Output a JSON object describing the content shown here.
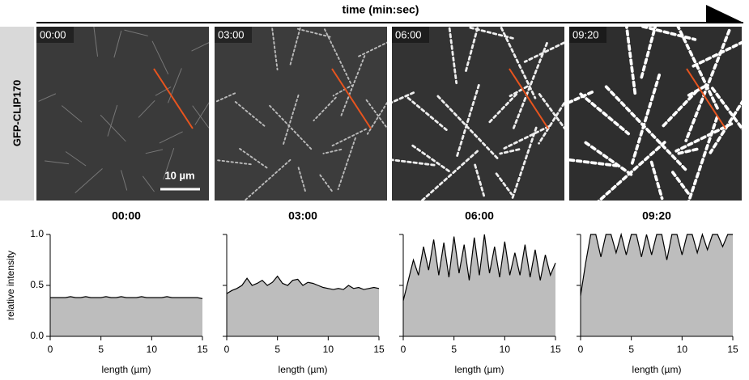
{
  "header": {
    "title": "time (min:sec)"
  },
  "images": {
    "label": "GFP-CLIP170",
    "scale_bar": "10 µm",
    "panels": [
      {
        "time": "00:00"
      },
      {
        "time": "03:00"
      },
      {
        "time": "06:00"
      },
      {
        "time": "09:20"
      }
    ]
  },
  "chart_data": [
    {
      "type": "area",
      "title": "00:00",
      "xlabel": "length (µm)",
      "ylabel": "relative intensity",
      "color": "#bdbdbd",
      "x": [
        0,
        0.5,
        1,
        1.5,
        2,
        2.5,
        3,
        3.5,
        4,
        4.5,
        5,
        5.5,
        6,
        6.5,
        7,
        7.5,
        8,
        8.5,
        9,
        9.5,
        10,
        10.5,
        11,
        11.5,
        12,
        12.5,
        13,
        13.5,
        14,
        14.5,
        15
      ],
      "values": [
        0.38,
        0.38,
        0.38,
        0.38,
        0.39,
        0.38,
        0.38,
        0.39,
        0.38,
        0.38,
        0.38,
        0.39,
        0.38,
        0.38,
        0.39,
        0.38,
        0.38,
        0.38,
        0.39,
        0.38,
        0.38,
        0.38,
        0.38,
        0.39,
        0.38,
        0.38,
        0.38,
        0.38,
        0.38,
        0.38,
        0.37
      ],
      "xlim": [
        0,
        15
      ],
      "xticks": [
        0,
        5,
        10,
        15
      ],
      "ylim": [
        0,
        1
      ],
      "yticks": [
        {
          "value": 0,
          "label": "0.0"
        },
        {
          "value": 0.5,
          "label": "0.5"
        },
        {
          "value": 1,
          "label": "1.0"
        }
      ]
    },
    {
      "type": "area",
      "title": "03:00",
      "xlabel": "length (µm)",
      "color": "#bdbdbd",
      "x": [
        0,
        0.5,
        1,
        1.5,
        2,
        2.5,
        3,
        3.5,
        4,
        4.5,
        5,
        5.5,
        6,
        6.5,
        7,
        7.5,
        8,
        8.5,
        9,
        9.5,
        10,
        10.5,
        11,
        11.5,
        12,
        12.5,
        13,
        13.5,
        14,
        14.5,
        15
      ],
      "values": [
        0.42,
        0.45,
        0.47,
        0.5,
        0.57,
        0.5,
        0.52,
        0.55,
        0.5,
        0.53,
        0.59,
        0.52,
        0.5,
        0.55,
        0.56,
        0.5,
        0.53,
        0.52,
        0.5,
        0.48,
        0.47,
        0.46,
        0.47,
        0.46,
        0.5,
        0.47,
        0.48,
        0.46,
        0.47,
        0.48,
        0.47
      ],
      "xlim": [
        0,
        15
      ],
      "xticks": [
        0,
        5,
        10,
        15
      ],
      "ylim": [
        0,
        1
      ],
      "yticks": [
        0,
        0.5,
        1
      ]
    },
    {
      "type": "area",
      "title": "06:00",
      "xlabel": "length (µm)",
      "color": "#bdbdbd",
      "x": [
        0,
        0.5,
        1,
        1.5,
        2,
        2.5,
        3,
        3.5,
        4,
        4.5,
        5,
        5.5,
        6,
        6.5,
        7,
        7.5,
        8,
        8.5,
        9,
        9.5,
        10,
        10.5,
        11,
        11.5,
        12,
        12.5,
        13,
        13.5,
        14,
        14.5,
        15
      ],
      "values": [
        0.35,
        0.55,
        0.75,
        0.6,
        0.88,
        0.65,
        0.95,
        0.6,
        0.92,
        0.58,
        0.98,
        0.62,
        0.9,
        0.55,
        0.97,
        0.6,
        1.0,
        0.62,
        0.88,
        0.58,
        0.93,
        0.6,
        0.82,
        0.6,
        0.9,
        0.58,
        0.85,
        0.55,
        0.8,
        0.6,
        0.72
      ],
      "xlim": [
        0,
        15
      ],
      "xticks": [
        0,
        5,
        10,
        15
      ],
      "ylim": [
        0,
        1
      ],
      "yticks": [
        0,
        0.5,
        1
      ]
    },
    {
      "type": "area",
      "title": "09:20",
      "xlabel": "length (µm)",
      "color": "#bdbdbd",
      "x": [
        0,
        0.5,
        1,
        1.5,
        2,
        2.5,
        3,
        3.5,
        4,
        4.5,
        5,
        5.5,
        6,
        6.5,
        7,
        7.5,
        8,
        8.5,
        9,
        9.5,
        10,
        10.5,
        11,
        11.5,
        12,
        12.5,
        13,
        13.5,
        14,
        14.5,
        15
      ],
      "values": [
        0.4,
        0.72,
        1,
        1,
        0.78,
        1,
        1,
        0.82,
        1,
        0.8,
        1,
        1,
        0.78,
        1,
        0.8,
        1,
        1,
        0.75,
        1,
        1,
        0.8,
        1,
        1,
        0.82,
        1,
        0.85,
        1,
        1,
        0.88,
        1,
        1
      ],
      "xlim": [
        0,
        15
      ],
      "xticks": [
        0,
        5,
        10,
        15
      ],
      "ylim": [
        0,
        1
      ],
      "yticks": [
        0,
        0.5,
        1
      ]
    }
  ]
}
